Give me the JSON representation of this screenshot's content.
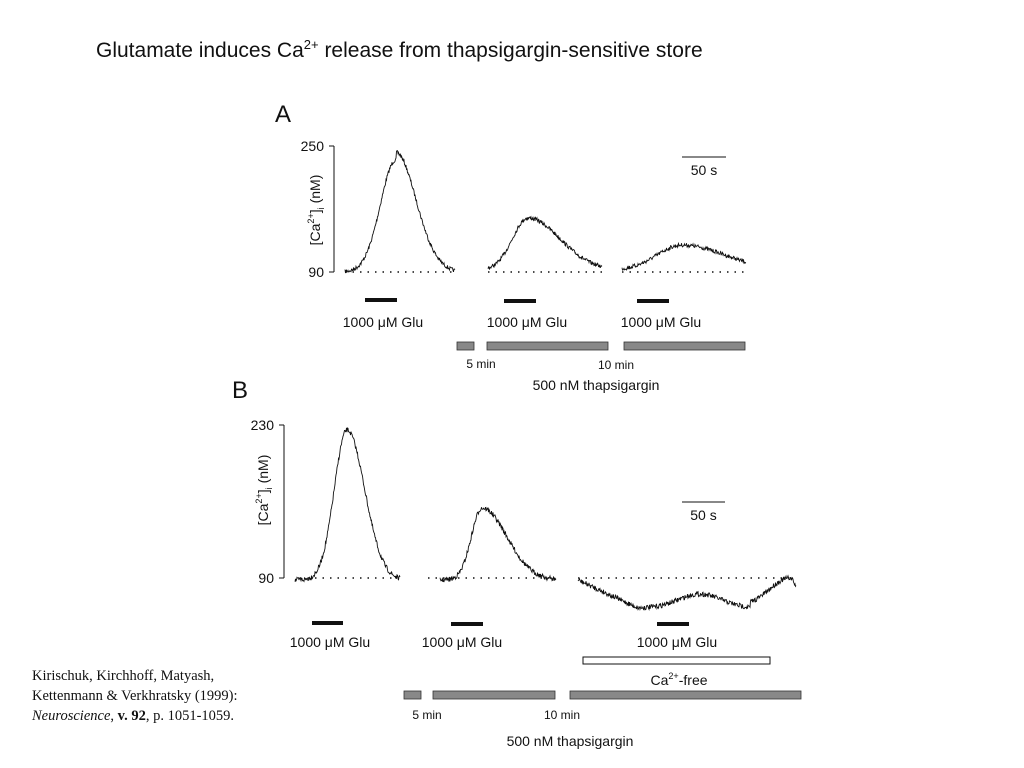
{
  "title": {
    "main": "Glutamate induces Ca",
    "sup": "2+",
    "rest": " release from thapsigargin-sensitive store"
  },
  "panels": [
    {
      "label": "A",
      "ylabel": {
        "a": "[Ca",
        "sup": "2+",
        "b": "]",
        "sub": "i",
        "c": " (nM)"
      },
      "ylim": [
        90,
        250
      ],
      "yticks": [
        90,
        250
      ],
      "scale_bar": "50 s",
      "stimuli": [
        "1000 μM Glu",
        "1000 μM Glu",
        "1000 μM Glu"
      ],
      "times": [
        "5 min",
        "10 min"
      ],
      "drug": "500 nM thapsigargin"
    },
    {
      "label": "B",
      "ylabel": {
        "a": "[Ca",
        "sup": "2+",
        "b": "]",
        "sub": "i",
        "c": " (nM)"
      },
      "ylim": [
        90,
        230
      ],
      "yticks": [
        90,
        230
      ],
      "scale_bar": "50 s",
      "stimuli": [
        "1000 μM Glu",
        "1000 μM Glu",
        "1000 μM Glu"
      ],
      "condition": {
        "a": "Ca",
        "sup": "2+",
        "b": "-free"
      },
      "times": [
        "5 min",
        "10 min"
      ],
      "drug": "500 nM thapsigargin"
    }
  ],
  "citation": {
    "authors": "Kirischuk, Kirchhoff, Matyash, Kettenmann & Verkhratsky (1999): ",
    "journal": "Neuroscience",
    "sep": ", ",
    "volume": "v. 92",
    "pages": ", p. 1051-1059."
  }
}
